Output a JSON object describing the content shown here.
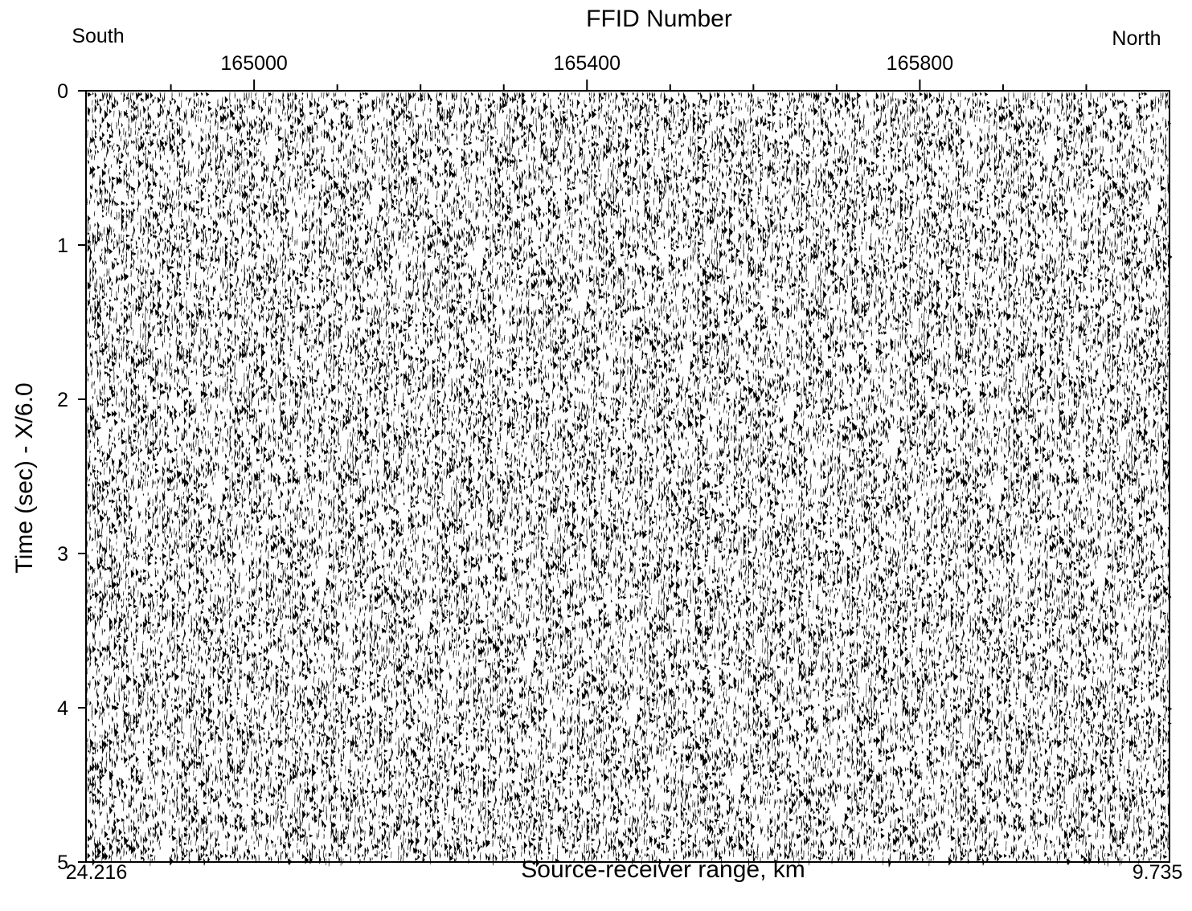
{
  "chart_data": {
    "type": "seismic",
    "title": "FFID Number",
    "left_label": "South",
    "right_label": "North",
    "y_label": "Time (sec) - X/6.0",
    "x_label": "Source-receiver range, km",
    "x_start_label": "24.216",
    "x_end_label": "9.735",
    "xlim": [
      164798,
      166100
    ],
    "xticks": [
      165000,
      165400,
      165800
    ],
    "minor_xticks": [
      164900,
      165100,
      165200,
      165300,
      165500,
      165600,
      165700,
      165900,
      166000
    ],
    "ylim": [
      0,
      5
    ],
    "yticks": [
      0,
      1,
      2,
      3,
      4,
      5
    ],
    "y_inverted": true,
    "color": "#000000"
  }
}
